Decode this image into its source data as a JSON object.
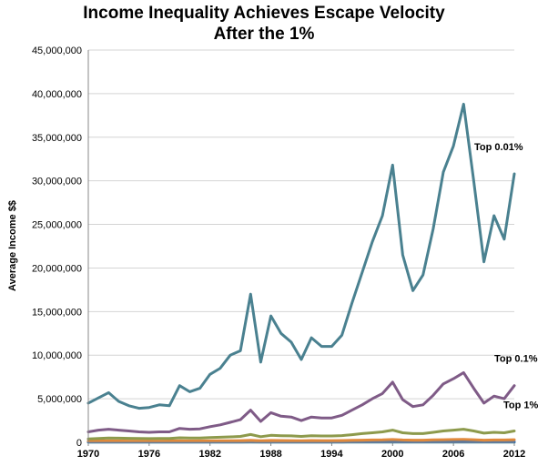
{
  "chart_data": {
    "type": "line",
    "title_lines": [
      "Income Inequality Achieves Escape Velocity",
      "After the 1%"
    ],
    "xlabel": "",
    "ylabel": "Average Income $$",
    "xlim": [
      1970,
      2012
    ],
    "ylim": [
      0,
      45000000
    ],
    "y_ticks": [
      0,
      5000000,
      10000000,
      15000000,
      20000000,
      25000000,
      30000000,
      35000000,
      40000000,
      45000000
    ],
    "y_tick_labels": [
      "0",
      "5,000,000",
      "10,000,000",
      "15,000,000",
      "20,000,000",
      "25,000,000",
      "30,000,000",
      "35,000,000",
      "40,000,000",
      "45,000,000"
    ],
    "x_ticks": [
      1970,
      1976,
      1982,
      1988,
      1994,
      2000,
      2006,
      2012
    ],
    "x_tick_labels": [
      "1970",
      "1976",
      "1982",
      "1988",
      "1994",
      "2000",
      "2006",
      "2012"
    ],
    "grid": {
      "horizontal": true,
      "vertical": false
    },
    "x": [
      1970,
      1971,
      1972,
      1973,
      1974,
      1975,
      1976,
      1977,
      1978,
      1979,
      1980,
      1981,
      1982,
      1983,
      1984,
      1985,
      1986,
      1987,
      1988,
      1989,
      1990,
      1991,
      1992,
      1993,
      1994,
      1995,
      1996,
      1997,
      1998,
      1999,
      2000,
      2001,
      2002,
      2003,
      2004,
      2005,
      2006,
      2007,
      2008,
      2009,
      2010,
      2011,
      2012
    ],
    "series": [
      {
        "name": "Top 0.01%",
        "color": "#4a8190",
        "values": [
          4500000,
          5100000,
          5700000,
          4700000,
          4200000,
          3900000,
          4000000,
          4300000,
          4200000,
          6500000,
          5800000,
          6200000,
          7800000,
          8500000,
          10000000,
          10500000,
          17000000,
          9200000,
          14500000,
          12500000,
          11500000,
          9500000,
          12000000,
          11000000,
          11000000,
          12300000,
          16000000,
          19500000,
          23000000,
          26000000,
          31800000,
          21500000,
          17400000,
          19200000,
          24500000,
          31000000,
          34000000,
          38800000,
          30000000,
          20700000,
          26000000,
          23300000,
          30800000
        ]
      },
      {
        "name": "Top 0.1%",
        "color": "#7f5b87",
        "values": [
          1200000,
          1400000,
          1500000,
          1400000,
          1300000,
          1200000,
          1150000,
          1200000,
          1200000,
          1600000,
          1500000,
          1550000,
          1800000,
          2000000,
          2300000,
          2600000,
          3700000,
          2400000,
          3400000,
          3000000,
          2900000,
          2500000,
          2900000,
          2800000,
          2800000,
          3100000,
          3700000,
          4300000,
          5000000,
          5600000,
          6900000,
          4900000,
          4100000,
          4300000,
          5400000,
          6700000,
          7300000,
          8000000,
          6200000,
          4500000,
          5300000,
          5000000,
          6500000
        ]
      },
      {
        "name": "Top 1%",
        "color": "#8d9a4c",
        "values": [
          400000,
          450000,
          500000,
          480000,
          460000,
          440000,
          430000,
          440000,
          440000,
          520000,
          500000,
          500000,
          540000,
          580000,
          630000,
          680000,
          900000,
          650000,
          800000,
          760000,
          740000,
          680000,
          750000,
          730000,
          730000,
          770000,
          880000,
          1000000,
          1100000,
          1200000,
          1400000,
          1100000,
          1000000,
          1000000,
          1150000,
          1300000,
          1400000,
          1500000,
          1300000,
          1050000,
          1150000,
          1100000,
          1300000
        ]
      },
      {
        "name": "",
        "color": "#e0893c",
        "values": [
          150000,
          155000,
          160000,
          155000,
          150000,
          148000,
          148000,
          150000,
          152000,
          165000,
          160000,
          162000,
          168000,
          175000,
          185000,
          195000,
          230000,
          185000,
          215000,
          205000,
          200000,
          190000,
          205000,
          200000,
          200000,
          210000,
          230000,
          250000,
          270000,
          285000,
          320000,
          270000,
          250000,
          255000,
          280000,
          305000,
          320000,
          335000,
          300000,
          255000,
          275000,
          270000,
          300000
        ]
      },
      {
        "name": "",
        "color": "#3a6fb0",
        "values": [
          40000,
          41000,
          42000,
          41000,
          40000,
          39000,
          39000,
          40000,
          40000,
          42000,
          41000,
          41000,
          42000,
          43000,
          44000,
          45000,
          48000,
          44000,
          46000,
          45000,
          45000,
          44000,
          45000,
          45000,
          45000,
          46000,
          48000,
          50000,
          52000,
          53000,
          56000,
          52000,
          50000,
          50000,
          52000,
          54000,
          55000,
          56000,
          53000,
          50000,
          51000,
          51000,
          52000
        ]
      },
      {
        "name": "",
        "color": "#3e8c8c",
        "values": [
          20000,
          20000,
          20500,
          20000,
          19500,
          19000,
          19000,
          19500,
          19500,
          20000,
          19800,
          19800,
          20000,
          20300,
          20600,
          21000,
          21500,
          21000,
          21300,
          21200,
          21100,
          21000,
          21200,
          21200,
          21200,
          21300,
          21700,
          22000,
          22300,
          22500,
          23000,
          22500,
          22200,
          22300,
          22600,
          23000,
          23200,
          23400,
          23000,
          22500,
          22700,
          22600,
          22800
        ]
      }
    ],
    "series_labels": [
      {
        "text": "Top 0.01%",
        "series": "Top 0.01%"
      },
      {
        "text": "Top 0.1%",
        "series": "Top 0.1%"
      },
      {
        "text": "Top 1%",
        "series": "Top 1%"
      }
    ]
  }
}
